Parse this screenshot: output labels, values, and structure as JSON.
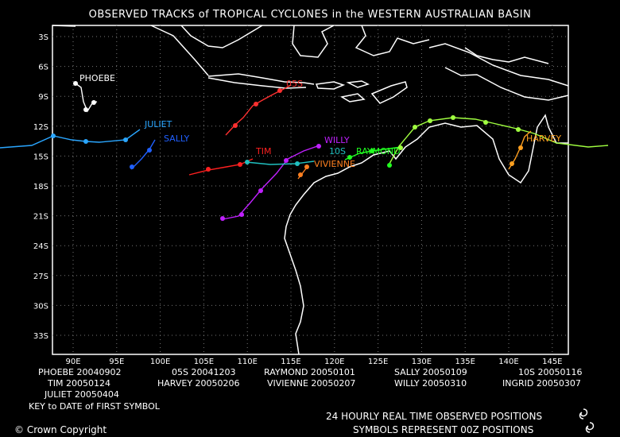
{
  "title": "OBSERVED TRACKS of TROPICAL CYCLONES in the WESTERN AUSTRALIAN BASIN",
  "axes": {
    "y_ticks": [
      "3S",
      "6S",
      "9S",
      "12S",
      "15S",
      "18S",
      "21S",
      "24S",
      "27S",
      "30S",
      "33S"
    ],
    "x_ticks": [
      "90E",
      "95E",
      "100E",
      "105E",
      "110E",
      "115E",
      "120E",
      "125E",
      "130E",
      "135E",
      "140E",
      "145E"
    ]
  },
  "storms": [
    {
      "name": "PHOEBE",
      "color": "#ffffff",
      "first_date": "20040902"
    },
    {
      "name": "TIM",
      "color": "#ff2020",
      "first_date": "20050124"
    },
    {
      "name": "JULIET",
      "color": "#2aa6ff",
      "first_date": "20050404"
    },
    {
      "name": "05S",
      "color": "#ff3030",
      "first_date": "20041203"
    },
    {
      "name": "HARVEY",
      "color": "#ffa020",
      "first_date": "20050206"
    },
    {
      "name": "RAYMOND",
      "color": "#20ff20",
      "first_date": "20050101"
    },
    {
      "name": "VIVIENNE",
      "color": "#ff8020",
      "first_date": "20050207"
    },
    {
      "name": "SALLY",
      "color": "#2060ff",
      "first_date": "20050109"
    },
    {
      "name": "WILLY",
      "color": "#c020ff",
      "first_date": "20050310"
    },
    {
      "name": "10S",
      "color": "#20c0c0",
      "first_date": "20050116"
    },
    {
      "name": "INGRID",
      "color": "#a0ff40",
      "first_date": "20050307"
    }
  ],
  "map_labels": [
    "PHOEBE",
    "05S",
    "JULIET",
    "SALLY",
    "TIM",
    "WILLY",
    "10S",
    "RAYMOND",
    "VIVIENNE",
    "HARVEY"
  ],
  "legend": {
    "rows": [
      [
        "PHOEBE 20040902",
        "05S 20041203",
        "RAYMOND 20050101",
        "SALLY 20050109",
        "10S 20050116"
      ],
      [
        "TIM 20050124",
        "HARVEY 20050206",
        "VIVIENNE 20050207",
        "WILLY 20050310",
        "INGRID 20050307"
      ],
      [
        "JULIET 20050404",
        "",
        "",
        "",
        ""
      ]
    ],
    "key_text": "KEY to DATE of FIRST SYMBOL"
  },
  "footer": {
    "line1": "24 HOURLY REAL TIME OBSERVED POSITIONS",
    "line2": "SYMBOLS REPRESENT 00Z POSITIONS",
    "copyright": "© Crown Copyright"
  }
}
